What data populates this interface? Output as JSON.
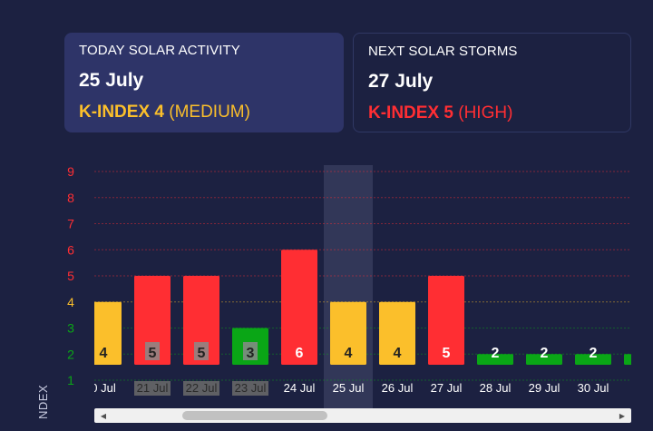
{
  "today": {
    "title": "TODAY SOLAR ACTIVITY",
    "date": "25 July",
    "k_label": "K-INDEX 4",
    "k_level": "(MEDIUM)"
  },
  "next": {
    "title": "NEXT SOLAR STORMS",
    "date": "27 July",
    "k_label": "K-INDEX 5",
    "k_level": "(HIGH)"
  },
  "colors": {
    "low": "#0aa616",
    "medium": "#fbbf2b",
    "high": "#ff2e33",
    "highlight": "#3a3f60"
  },
  "chart_data": {
    "type": "bar",
    "ylabel": "NDEX",
    "yticks": [
      "1",
      "2",
      "3",
      "4",
      "5",
      "6",
      "7",
      "8",
      "9"
    ],
    "ylim": [
      1,
      9
    ],
    "categories": [
      "0 Jul",
      "21 Jul",
      "22 Jul",
      "23 Jul",
      "24 Jul",
      "25 Jul",
      "26 Jul",
      "27 Jul",
      "28 Jul",
      "29 Jul",
      "30 Jul",
      "3"
    ],
    "values": [
      4,
      5,
      5,
      3,
      6,
      4,
      4,
      5,
      2,
      2,
      2,
      2
    ],
    "value_labels": [
      "4",
      "5",
      "5",
      "3",
      "6",
      "4",
      "4",
      "5",
      "2",
      "2",
      "2",
      ""
    ],
    "highlight_index": 5,
    "greyed_categories": [
      "21 Jul",
      "22 Jul",
      "23 Jul"
    ],
    "grid": true
  }
}
